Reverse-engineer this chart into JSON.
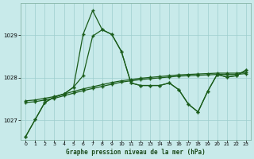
{
  "title": "Graphe pression niveau de la mer (hPa)",
  "bg_color": "#c8eaea",
  "grid_color": "#9ecece",
  "line_color": "#1a5c1a",
  "ylim": [
    1026.55,
    1029.75
  ],
  "yticks": [
    1027,
    1028,
    1029
  ],
  "xlim": [
    -0.5,
    23.5
  ],
  "xticks": [
    0,
    1,
    2,
    3,
    4,
    5,
    6,
    7,
    8,
    9,
    10,
    11,
    12,
    13,
    14,
    15,
    16,
    17,
    18,
    19,
    20,
    21,
    22,
    23
  ],
  "s1": [
    1026.62,
    1027.02,
    1027.42,
    1027.55,
    1027.62,
    1027.78,
    1029.02,
    1029.58,
    1029.13,
    1029.02,
    1028.62,
    1027.88,
    1027.82,
    1027.82,
    1027.82,
    1027.88,
    1027.72,
    1027.38,
    1027.2,
    1027.68,
    1028.08,
    1028.02,
    1028.05,
    1028.18
  ],
  "s2": [
    1026.62,
    1027.02,
    1027.42,
    1027.55,
    1027.62,
    1027.78,
    1028.05,
    1028.98,
    1029.13,
    1029.02,
    1028.62,
    1027.88,
    1027.82,
    1027.82,
    1027.82,
    1027.88,
    1027.72,
    1027.38,
    1027.2,
    1027.68,
    1028.08,
    1028.02,
    1028.05,
    1028.18
  ],
  "s3": [
    1027.42,
    1027.44,
    1027.48,
    1027.52,
    1027.58,
    1027.64,
    1027.7,
    1027.75,
    1027.8,
    1027.85,
    1027.9,
    1027.93,
    1027.96,
    1027.98,
    1028.0,
    1028.02,
    1028.04,
    1028.05,
    1028.06,
    1028.07,
    1028.08,
    1028.08,
    1028.08,
    1028.1
  ],
  "s4": [
    1027.46,
    1027.48,
    1027.52,
    1027.56,
    1027.62,
    1027.68,
    1027.74,
    1027.79,
    1027.84,
    1027.89,
    1027.93,
    1027.96,
    1027.99,
    1028.01,
    1028.03,
    1028.05,
    1028.07,
    1028.08,
    1028.09,
    1028.1,
    1028.11,
    1028.11,
    1028.11,
    1028.13
  ]
}
